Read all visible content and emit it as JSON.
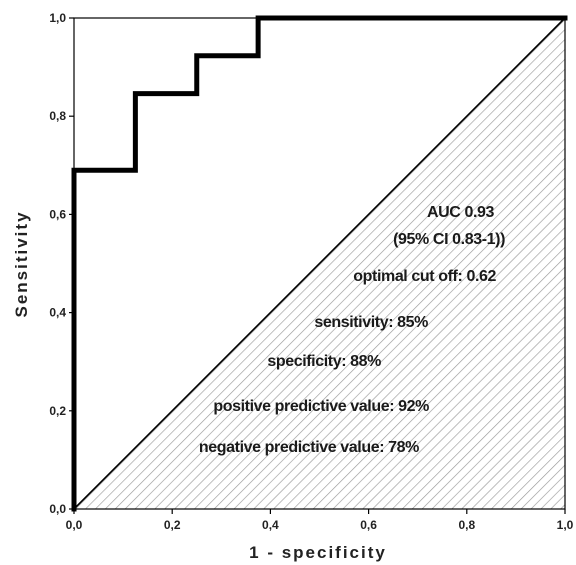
{
  "chart_data": {
    "type": "line",
    "xlabel": "1 - specificity",
    "ylabel": "Sensitivity",
    "xlim": [
      0,
      1
    ],
    "ylim": [
      0,
      1
    ],
    "x_ticks": [
      "0,0",
      "0,2",
      "0,4",
      "0,6",
      "0,8",
      "1,0"
    ],
    "y_ticks": [
      "0,0",
      "0,2",
      "0,4",
      "0,6",
      "0,8",
      "1,0"
    ],
    "series": [
      {
        "type": "step",
        "x": [
          0,
          0,
          0.125,
          0.125,
          0.25,
          0.25,
          0.375,
          0.375,
          1.0
        ],
        "y": [
          0,
          0.69,
          0.69,
          0.846,
          0.846,
          0.923,
          0.923,
          1.0,
          1.0
        ]
      },
      {
        "type": "reference-diagonal",
        "x": [
          0,
          1
        ],
        "y": [
          0,
          1
        ]
      }
    ],
    "shaded_region": "area under the diagonal reference line (hatched)",
    "annotations": [
      "AUC 0.93",
      "(95% CI 0.83-1))",
      "optimal cut off: 0.62",
      "sensitivity: 85%",
      "specificity: 88%",
      "positive predictive value: 92%",
      "negative predictive value: 78%"
    ],
    "grid": false,
    "colors": {
      "roc_line": "#000000",
      "hatch": "#9a9a9a",
      "diagonal": "#000000"
    }
  }
}
